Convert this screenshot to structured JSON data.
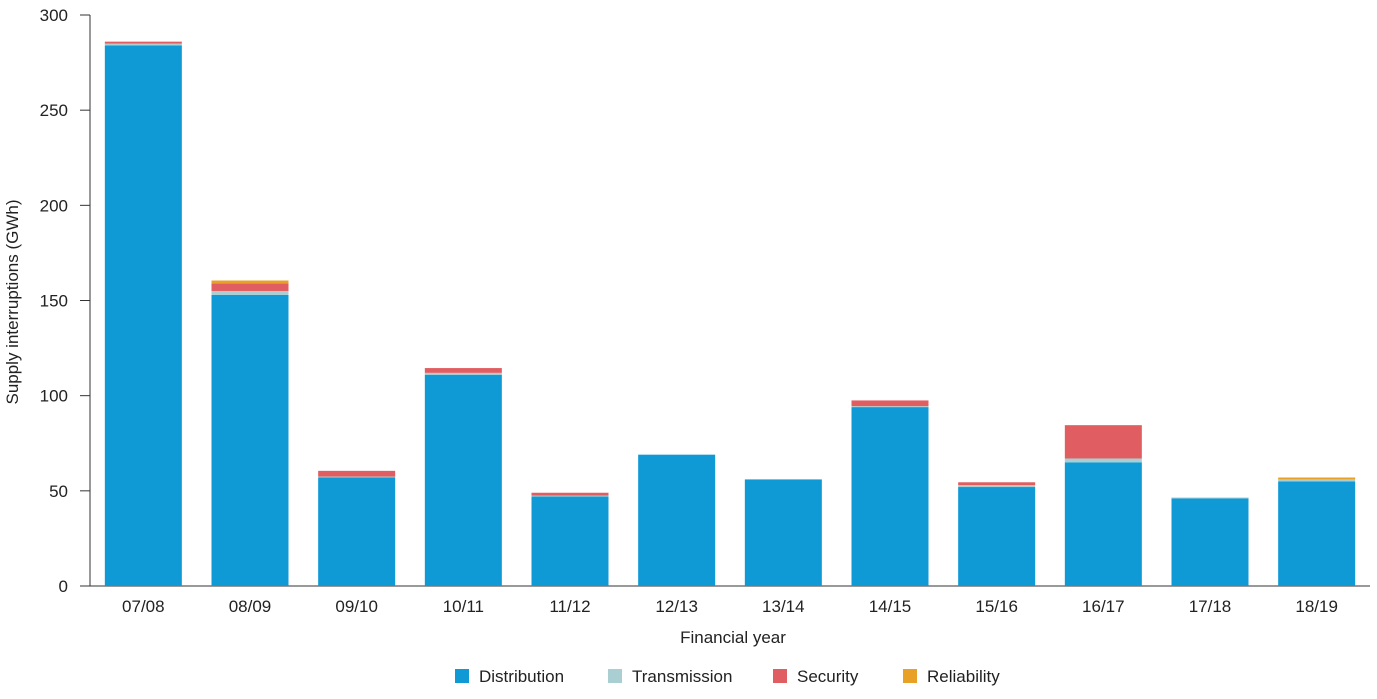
{
  "chart_data": {
    "type": "bar",
    "stacked": true,
    "title": "",
    "xlabel": "Financial year",
    "ylabel": "Supply interruptions (GWh)",
    "ylim": [
      0,
      300
    ],
    "yticks": [
      0,
      50,
      100,
      150,
      200,
      250,
      300
    ],
    "grid": false,
    "legend_position": "bottom",
    "categories": [
      "07/08",
      "08/09",
      "09/10",
      "10/11",
      "11/12",
      "12/13",
      "13/14",
      "14/15",
      "15/16",
      "16/17",
      "17/18",
      "18/19"
    ],
    "series": [
      {
        "name": "Distribution",
        "color": "#0f9ad6",
        "values": [
          284,
          153,
          57,
          111,
          47,
          69,
          56,
          94,
          52,
          65,
          46,
          55
        ]
      },
      {
        "name": "Transmission",
        "color": "#a9cfd2",
        "values": [
          1,
          2,
          0.5,
          1,
          0.5,
          0,
          0,
          0.5,
          1,
          2,
          0.5,
          1
        ]
      },
      {
        "name": "Security",
        "color": "#e05e61",
        "values": [
          1,
          4,
          3,
          2.5,
          1.5,
          0,
          0,
          3,
          1.5,
          17.5,
          0,
          0
        ]
      },
      {
        "name": "Reliability",
        "color": "#e9a027",
        "values": [
          0,
          1.5,
          0,
          0,
          0,
          0,
          0,
          0,
          0,
          0,
          0,
          1
        ]
      }
    ]
  }
}
